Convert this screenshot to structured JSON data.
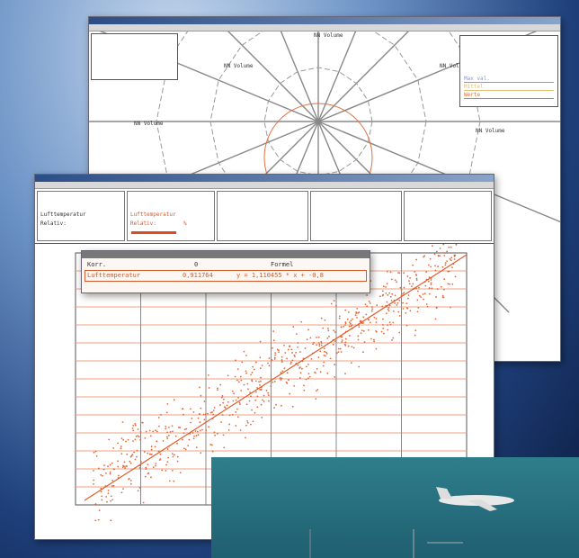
{
  "back_window": {
    "legend": [
      "Max val.",
      "Mittel",
      "Werte"
    ],
    "polar_labels": [
      "NN Volume",
      "NN Volume",
      "NN Volume",
      "NN Volume",
      "NN Volume"
    ]
  },
  "front_window": {
    "panels": [
      "Lufttemperatur",
      "Relativ:",
      "%"
    ]
  },
  "dialog": {
    "header": [
      "Korr.",
      "0",
      "Formel"
    ],
    "row": [
      "Lufttemperatur",
      "0,911764",
      "y = 1,110455 * x + -0,8"
    ]
  }
}
